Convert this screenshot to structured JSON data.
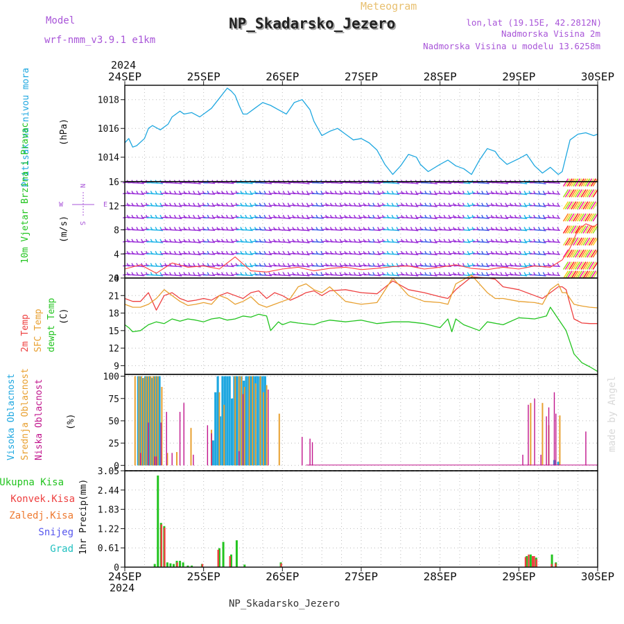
{
  "header": {
    "model_label": "Model",
    "model_name": "wrf-nmm_v3.9.1  e1km",
    "product": "Meteogram",
    "title": "NP_Skadarsko_Jezero",
    "lonlat": "lon,lat (19.15E, 42.2812N)",
    "height1": "Nadmorska Visina 2m",
    "height2": "Nadmorska Visina u modelu 13.6258m",
    "footer": "NP_Skadarsko_Jezero",
    "credit": "made by Angel",
    "year": "2024"
  },
  "colors": {
    "model": "#a855d8",
    "product": "#e8c070",
    "pressure": "#1ea7e0",
    "wind_label": "#22c41f",
    "temp2m": "#ee4040",
    "sfc": "#e8a030",
    "dewpt": "#22c41f",
    "high_cloud": "#1ea7e0",
    "mid_cloud": "#e8a030",
    "low_cloud": "#c0148c",
    "total_precip": "#22c41f",
    "conv_precip": "#ee4040",
    "frozen_precip": "#ee7a30",
    "snow": "#5555ee",
    "hail": "#20c0c0",
    "wind_barbs": "#9b30d8"
  },
  "axes": {
    "time_ticks": [
      "24SEP",
      "25SEP",
      "26SEP",
      "27SEP",
      "28SEP",
      "29SEP",
      "30SEP"
    ]
  },
  "chart_data": [
    {
      "type": "line",
      "name": "pressure",
      "ylabel": "Pritisak na nivou mora",
      "unit": "(hPa)",
      "yticks": [
        1014,
        1016,
        1018
      ],
      "ylim": [
        1012.3,
        1019.0
      ],
      "x_unit": "days since 24SEP 00UTC",
      "x": [
        0,
        0.05,
        0.1,
        0.15,
        0.25,
        0.3,
        0.35,
        0.45,
        0.55,
        0.6,
        0.7,
        0.75,
        0.85,
        0.95,
        1.0,
        1.1,
        1.2,
        1.3,
        1.35,
        1.4,
        1.45,
        1.5,
        1.55,
        1.65,
        1.75,
        1.85,
        1.95,
        2.05,
        2.15,
        2.25,
        2.35,
        2.4,
        2.5,
        2.6,
        2.7,
        2.8,
        2.9,
        3.0,
        3.1,
        3.2,
        3.3,
        3.4,
        3.5,
        3.6,
        3.7,
        3.75,
        3.85,
        4.0,
        4.1,
        4.2,
        4.3,
        4.4,
        4.5,
        4.6,
        4.7,
        4.75,
        4.85,
        5.0,
        5.1,
        5.2,
        5.3,
        5.4,
        5.5,
        5.55,
        5.65,
        5.75,
        5.85,
        5.95,
        6.0
      ],
      "values": [
        1015.0,
        1015.3,
        1014.7,
        1014.8,
        1015.3,
        1016.0,
        1016.2,
        1015.9,
        1016.3,
        1016.8,
        1017.2,
        1017.0,
        1017.1,
        1016.8,
        1017.0,
        1017.4,
        1018.1,
        1018.8,
        1018.6,
        1018.3,
        1017.6,
        1017.0,
        1017.0,
        1017.4,
        1017.8,
        1017.6,
        1017.3,
        1017.0,
        1017.8,
        1018.0,
        1017.3,
        1016.5,
        1015.5,
        1015.8,
        1016.0,
        1015.6,
        1015.2,
        1015.3,
        1015.0,
        1014.5,
        1013.5,
        1012.8,
        1013.4,
        1014.2,
        1014.0,
        1013.5,
        1013.0,
        1013.5,
        1013.8,
        1013.4,
        1013.2,
        1012.8,
        1013.8,
        1014.6,
        1014.4,
        1014.0,
        1013.5,
        1013.9,
        1014.2,
        1013.4,
        1012.9,
        1013.3,
        1012.8,
        1013.0,
        1015.2,
        1015.6,
        1015.7,
        1015.5,
        1015.6
      ]
    },
    {
      "type": "line",
      "name": "wind",
      "ylabel": "10m Vjetar Brzina i Pravac",
      "unit": "(m/s)",
      "yticks": [
        0,
        4,
        8,
        12,
        16
      ],
      "ylim": [
        0,
        16
      ],
      "x_unit": "days since 24SEP 00UTC",
      "compass": [
        "N",
        "W",
        "E",
        "S"
      ],
      "barb_levels": [
        0.5,
        2,
        4,
        6,
        8,
        10,
        12,
        14,
        15.8
      ],
      "series": [
        {
          "name": "speed",
          "x": [
            0,
            0.2,
            0.4,
            0.6,
            0.8,
            1.0,
            1.2,
            1.4,
            1.6,
            1.8,
            2.0,
            2.2,
            2.4,
            2.6,
            2.8,
            3.0,
            3.2,
            3.4,
            3.6,
            3.8,
            4.0,
            4.2,
            4.4,
            4.6,
            4.8,
            5.0,
            5.2,
            5.4,
            5.55,
            5.65,
            5.75,
            5.85,
            5.95,
            6.0
          ],
          "values": [
            1.5,
            2.2,
            0.8,
            2.5,
            1.8,
            2.0,
            1.5,
            3.5,
            1.2,
            1.0,
            1.5,
            1.8,
            1.2,
            1.6,
            1.8,
            1.4,
            1.6,
            1.9,
            2.0,
            1.5,
            1.8,
            2.2,
            1.6,
            1.4,
            1.8,
            1.5,
            2.0,
            1.8,
            3.0,
            5.0,
            8.0,
            9.0,
            8.5,
            9.0
          ]
        }
      ]
    },
    {
      "type": "line",
      "name": "temperature",
      "ylabels": [
        "2m Temp",
        "SFC Temp",
        "dewpt Temp"
      ],
      "unit": "(C)",
      "yticks": [
        9,
        12,
        15,
        18,
        21,
        24
      ],
      "ylim": [
        7.5,
        24
      ],
      "x_unit": "days since 24SEP 00UTC",
      "series": [
        {
          "name": "2m",
          "x": [
            0,
            0.1,
            0.2,
            0.3,
            0.4,
            0.5,
            0.6,
            0.7,
            0.8,
            0.9,
            1.0,
            1.1,
            1.2,
            1.3,
            1.4,
            1.5,
            1.6,
            1.7,
            1.8,
            1.9,
            2.0,
            2.1,
            2.2,
            2.3,
            2.4,
            2.5,
            2.6,
            2.8,
            3.0,
            3.2,
            3.4,
            3.6,
            3.8,
            4.0,
            4.1,
            4.2,
            4.4,
            4.6,
            4.7,
            4.8,
            5.0,
            5.2,
            5.3,
            5.4,
            5.5,
            5.55,
            5.6,
            5.7,
            5.8,
            5.9,
            6.0
          ],
          "values": [
            20.5,
            20.0,
            20.0,
            21.5,
            18.5,
            21.0,
            21.5,
            20.5,
            20.0,
            20.2,
            20.5,
            20.2,
            21.0,
            21.5,
            21.0,
            20.5,
            21.5,
            21.8,
            20.5,
            21.5,
            21.0,
            20.2,
            20.8,
            21.5,
            21.8,
            21.0,
            21.8,
            22.0,
            21.5,
            21.3,
            23.5,
            22.0,
            21.5,
            20.8,
            20.5,
            22.0,
            24.2,
            24.0,
            23.8,
            22.5,
            22.0,
            21.0,
            20.5,
            21.5,
            22.5,
            22.5,
            22.0,
            17.0,
            16.3,
            16.2,
            16.2
          ]
        },
        {
          "name": "sfc",
          "x": [
            0,
            0.1,
            0.2,
            0.3,
            0.4,
            0.5,
            0.6,
            0.7,
            0.8,
            0.9,
            1.0,
            1.1,
            1.2,
            1.3,
            1.4,
            1.5,
            1.6,
            1.7,
            1.8,
            1.9,
            2.0,
            2.1,
            2.2,
            2.3,
            2.4,
            2.5,
            2.6,
            2.8,
            3.0,
            3.2,
            3.4,
            3.6,
            3.8,
            4.0,
            4.1,
            4.2,
            4.4,
            4.6,
            4.7,
            4.8,
            5.0,
            5.2,
            5.3,
            5.4,
            5.5,
            5.55,
            5.6,
            5.7,
            5.8,
            5.9,
            6.0
          ],
          "values": [
            19.5,
            19.0,
            19.0,
            19.5,
            20.5,
            22.0,
            21.0,
            20.0,
            19.3,
            19.5,
            19.8,
            19.5,
            21.0,
            20.5,
            19.5,
            20.0,
            20.8,
            19.5,
            19.0,
            19.5,
            20.0,
            20.5,
            22.5,
            23.0,
            22.0,
            21.5,
            22.5,
            20.0,
            19.5,
            19.8,
            24.0,
            21.0,
            20.0,
            19.8,
            19.5,
            23.0,
            24.5,
            21.5,
            20.5,
            20.5,
            20.0,
            19.8,
            19.5,
            22.0,
            23.0,
            21.5,
            21.5,
            19.5,
            19.2,
            19.0,
            18.9
          ]
        },
        {
          "name": "dewpt",
          "x": [
            0,
            0.05,
            0.1,
            0.2,
            0.3,
            0.4,
            0.5,
            0.6,
            0.7,
            0.8,
            0.9,
            1.0,
            1.1,
            1.2,
            1.3,
            1.4,
            1.5,
            1.6,
            1.7,
            1.8,
            1.85,
            1.95,
            2.0,
            2.1,
            2.2,
            2.4,
            2.5,
            2.6,
            2.8,
            3.0,
            3.2,
            3.4,
            3.6,
            3.8,
            4.0,
            4.1,
            4.15,
            4.2,
            4.3,
            4.5,
            4.6,
            4.8,
            5.0,
            5.2,
            5.35,
            5.4,
            5.5,
            5.6,
            5.7,
            5.8,
            5.9,
            6.0
          ],
          "values": [
            16.0,
            15.5,
            14.8,
            15.0,
            16.0,
            16.5,
            16.2,
            17.0,
            16.6,
            17.0,
            16.8,
            16.5,
            17.0,
            17.2,
            16.8,
            17.0,
            17.5,
            17.3,
            17.8,
            17.5,
            15.0,
            16.5,
            16.0,
            16.5,
            16.3,
            16.0,
            16.5,
            16.8,
            16.5,
            16.8,
            16.2,
            16.5,
            16.5,
            16.2,
            15.5,
            17.0,
            14.8,
            17.0,
            16.0,
            15.0,
            16.5,
            16.0,
            17.2,
            17.0,
            17.5,
            19.0,
            17.0,
            15.0,
            11.0,
            9.5,
            8.8,
            8.0
          ]
        }
      ]
    },
    {
      "type": "bar",
      "name": "cloud",
      "ylabels": [
        "Visoka Oblacnost",
        "Srednja Oblacnost",
        "Niska Oblacnost"
      ],
      "unit": "(%)",
      "yticks": [
        0,
        25,
        50,
        75,
        100
      ],
      "ylim": [
        0,
        100
      ],
      "x_unit": "days since 24SEP 00UTC",
      "series": [
        {
          "name": "high",
          "x": [
            0.17,
            0.2,
            0.23,
            0.26,
            0.29,
            0.32,
            0.35,
            0.38,
            0.41,
            0.44,
            1.12,
            1.15,
            1.18,
            1.21,
            1.24,
            1.27,
            1.3,
            1.33,
            1.36,
            1.39,
            1.42,
            1.45,
            1.48,
            1.51,
            1.54,
            1.57,
            1.6,
            1.63,
            1.66,
            1.69,
            1.72,
            1.75,
            1.78,
            5.45,
            5.5
          ],
          "values": [
            100,
            100,
            98,
            100,
            100,
            100,
            98,
            100,
            100,
            100,
            28,
            82,
            100,
            55,
            100,
            100,
            100,
            100,
            75,
            100,
            100,
            100,
            100,
            95,
            100,
            100,
            100,
            100,
            100,
            100,
            100,
            100,
            100,
            6,
            4
          ]
        },
        {
          "name": "mid",
          "x": [
            0.13,
            0.18,
            0.21,
            0.24,
            0.27,
            0.3,
            0.33,
            0.36,
            0.39,
            0.42,
            0.47,
            0.54,
            0.66,
            0.84,
            1.1,
            1.2,
            1.26,
            1.4,
            1.45,
            1.48,
            1.52,
            1.58,
            1.62,
            1.66,
            1.72,
            1.76,
            1.8,
            1.96,
            5.15,
            5.3,
            5.38,
            5.52
          ],
          "values": [
            100,
            100,
            100,
            98,
            100,
            100,
            100,
            100,
            100,
            100,
            88,
            14,
            15,
            42,
            40,
            82,
            68,
            100,
            100,
            100,
            88,
            100,
            100,
            92,
            100,
            82,
            90,
            58,
            70,
            70,
            45,
            56
          ]
        },
        {
          "name": "low",
          "x": [
            0.2,
            0.3,
            0.38,
            0.4,
            0.46,
            0.53,
            0.6,
            0.7,
            0.75,
            0.87,
            1.05,
            1.1,
            1.45,
            1.5,
            1.82,
            2.25,
            2.35,
            2.38,
            5.05,
            5.12,
            5.2,
            5.28,
            5.35,
            5.38,
            5.45,
            5.47,
            5.85
          ],
          "values": [
            14,
            48,
            10,
            10,
            48,
            60,
            14,
            60,
            70,
            12,
            45,
            36,
            16,
            80,
            85,
            32,
            30,
            26,
            12,
            68,
            75,
            12,
            55,
            65,
            82,
            58,
            38
          ]
        }
      ]
    },
    {
      "type": "bar",
      "name": "precipitation",
      "ylabel": "1hr Precip",
      "unit": "(mm)",
      "ylabels": [
        "Ukupna Kisa",
        "Konvek.Kisa",
        "Zaledj.Kisa",
        "Snijeg",
        "Grad"
      ],
      "ytick_labels": [
        "0",
        "0.61",
        "1.22",
        "1.83",
        "2.44",
        "3.05"
      ],
      "ylim": [
        0,
        3.05
      ],
      "x_unit": "days since 24SEP 00UTC",
      "series": [
        {
          "name": "total",
          "x": [
            0.38,
            0.42,
            0.46,
            0.5,
            0.54,
            0.58,
            0.62,
            0.66,
            0.7,
            0.74,
            0.8,
            0.85,
            0.98,
            1.2,
            1.25,
            1.35,
            1.42,
            1.52,
            1.98,
            5.1,
            5.15,
            5.22,
            5.42,
            5.47
          ],
          "values": [
            0.1,
            2.9,
            1.4,
            1.3,
            0.15,
            0.12,
            0.1,
            0.2,
            0.2,
            0.15,
            0.05,
            0.05,
            0.1,
            0.6,
            0.8,
            0.4,
            0.85,
            0.08,
            0.15,
            0.35,
            0.4,
            0.3,
            0.4,
            0.15
          ]
        },
        {
          "name": "convective",
          "x": [
            0.465,
            0.505,
            0.665,
            0.985,
            1.185,
            1.335,
            1.985,
            5.085,
            5.125,
            5.175,
            5.195,
            5.225,
            5.415,
            5.465
          ],
          "values": [
            1.35,
            1.25,
            0.15,
            0.1,
            0.55,
            0.35,
            0.12,
            0.32,
            0.4,
            0.35,
            0.35,
            0.25,
            0.1,
            0.12
          ]
        }
      ]
    }
  ]
}
